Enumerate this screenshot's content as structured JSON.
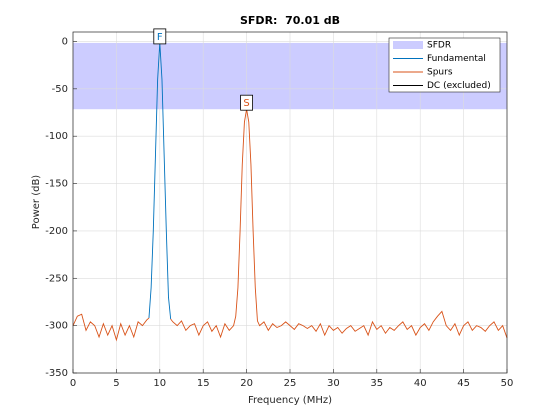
{
  "chart_data": {
    "type": "line",
    "title": "SFDR:  70.01 dB",
    "x_label": "Frequency (MHz)",
    "y_label": "Power (dB)",
    "xlim": [
      0,
      50
    ],
    "ylim": [
      -350,
      10
    ],
    "xticks": [
      0,
      5,
      10,
      15,
      20,
      25,
      30,
      35,
      40,
      45,
      50
    ],
    "yticks": [
      0,
      -50,
      -100,
      -150,
      -200,
      -250,
      -300,
      -350
    ],
    "grid": true,
    "legend_position": "top-right",
    "sfdr_band": {
      "name": "SFDR",
      "color": "#ccccff",
      "range": [
        -1.5,
        -71.51
      ]
    },
    "series": [
      {
        "name": "Fundamental",
        "color": "#0072bd",
        "x": [
          8.75,
          9,
          9.25,
          9.5,
          9.75,
          10,
          10.25,
          10.5,
          10.75,
          11,
          11.25
        ],
        "values": [
          -292,
          -260,
          -200,
          -120,
          -40,
          -1.5,
          -40,
          -120,
          -200,
          -270,
          -293
        ]
      },
      {
        "name": "Spurs",
        "color": "#d95319",
        "x": [
          0,
          0.5,
          1,
          1.5,
          2,
          2.5,
          3,
          3.5,
          4,
          4.5,
          5,
          5.5,
          6,
          6.5,
          7,
          7.5,
          8,
          8.5,
          8.75,
          10,
          11.25,
          11.5,
          12,
          12.5,
          13,
          13.5,
          14,
          14.5,
          15,
          15.5,
          16,
          16.5,
          17,
          17.5,
          18,
          18.5,
          18.75,
          19,
          19.25,
          19.5,
          19.75,
          20,
          20.25,
          20.5,
          20.75,
          21,
          21.25,
          21.5,
          22,
          22.5,
          23,
          23.5,
          24,
          24.5,
          25,
          25.5,
          26,
          26.5,
          27,
          27.5,
          28,
          28.5,
          29,
          29.5,
          30,
          30.5,
          31,
          31.5,
          32,
          32.5,
          33,
          33.5,
          34,
          34.5,
          35,
          35.5,
          36,
          36.5,
          37,
          37.5,
          38,
          38.5,
          39,
          39.5,
          40,
          40.5,
          41,
          41.5,
          42,
          42.5,
          43,
          43.5,
          44,
          44.5,
          45,
          45.5,
          46,
          46.5,
          47,
          47.5,
          48,
          48.5,
          49,
          49.5,
          50
        ],
        "values": [
          -300,
          -290,
          -288,
          -305,
          -296,
          -300,
          -312,
          -298,
          -310,
          -300,
          -315,
          -298,
          -310,
          -300,
          -312,
          -296,
          -300,
          -294,
          -292,
          null,
          -293,
          -296,
          -300,
          -295,
          -305,
          -300,
          -298,
          -310,
          -300,
          -296,
          -306,
          -300,
          -312,
          -298,
          -305,
          -300,
          -290,
          -260,
          -200,
          -130,
          -85,
          -71.5,
          -85,
          -130,
          -200,
          -260,
          -295,
          -300,
          -296,
          -305,
          -298,
          -302,
          -300,
          -296,
          -300,
          -304,
          -298,
          -300,
          -303,
          -300,
          -306,
          -298,
          -310,
          -300,
          -305,
          -302,
          -308,
          -303,
          -300,
          -306,
          -303,
          -300,
          -310,
          -296,
          -304,
          -300,
          -308,
          -302,
          -305,
          -300,
          -296,
          -304,
          -300,
          -310,
          -302,
          -298,
          -305,
          -296,
          -290,
          -285,
          -300,
          -305,
          -298,
          -310,
          -300,
          -296,
          -305,
          -300,
          -302,
          -306,
          -300,
          -296,
          -305,
          -300,
          -313
        ]
      },
      {
        "name": "DC (excluded)",
        "color": "#000000",
        "x": [],
        "values": []
      }
    ],
    "annotations": [
      {
        "text": "F",
        "x": 10,
        "y": -1.5
      },
      {
        "text": "S",
        "x": 20,
        "y": -71.5
      }
    ]
  }
}
